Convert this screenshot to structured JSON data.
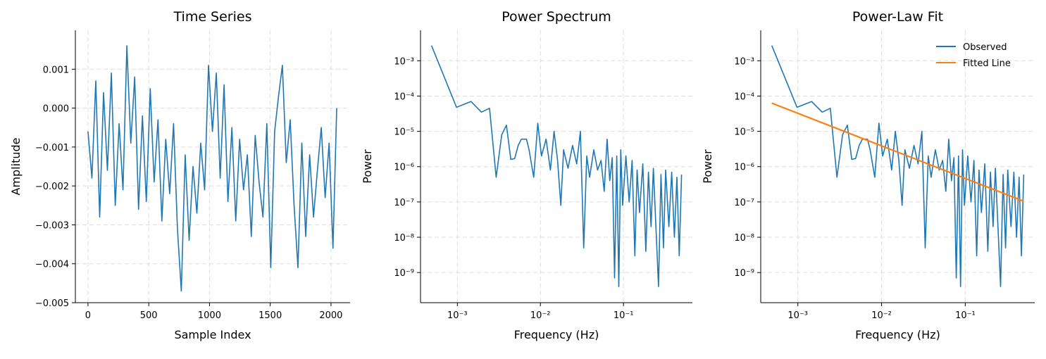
{
  "chart_data": [
    {
      "type": "line",
      "title": "Time Series",
      "xlabel": "Sample Index",
      "ylabel": "Amplitude",
      "x": [
        0,
        32,
        64,
        96,
        128,
        160,
        192,
        224,
        256,
        288,
        320,
        352,
        384,
        416,
        448,
        480,
        512,
        544,
        576,
        608,
        640,
        672,
        704,
        736,
        768,
        800,
        832,
        864,
        896,
        928,
        960,
        992,
        1024,
        1056,
        1088,
        1120,
        1152,
        1184,
        1216,
        1248,
        1280,
        1312,
        1344,
        1376,
        1408,
        1440,
        1472,
        1504,
        1536,
        1568,
        1600,
        1632,
        1664,
        1696,
        1728,
        1760,
        1792,
        1824,
        1856,
        1888,
        1920,
        1952,
        1984,
        2016,
        2047
      ],
      "series": [
        {
          "color": "#1f77b4",
          "values": [
            -0.0006,
            -0.0018,
            0.0007,
            -0.0028,
            0.0004,
            -0.0016,
            0.0009,
            -0.0025,
            -0.0004,
            -0.0021,
            0.0016,
            -0.0009,
            0.0008,
            -0.0026,
            -0.0002,
            -0.0024,
            0.0005,
            -0.0019,
            -0.0003,
            -0.0029,
            -0.0008,
            -0.0022,
            -0.0004,
            -0.0031,
            -0.0047,
            -0.0012,
            -0.0034,
            -0.0015,
            -0.0027,
            -0.0009,
            -0.0021,
            0.0011,
            -0.0006,
            0.0009,
            -0.0018,
            0.0006,
            -0.0024,
            -0.0005,
            -0.0029,
            -0.0008,
            -0.0021,
            -0.0012,
            -0.0033,
            -0.0007,
            -0.0019,
            -0.0028,
            -0.0004,
            -0.0041,
            -0.0006,
            0.0003,
            0.0011,
            -0.0014,
            -0.0003,
            -0.0025,
            -0.0041,
            -0.0009,
            -0.0033,
            -0.0012,
            -0.0028,
            -0.0016,
            -0.0005,
            -0.0023,
            -0.0009,
            -0.0036,
            0.0
          ]
        }
      ],
      "xlim": [
        -104,
        2157
      ],
      "ylim": [
        -0.005,
        0.002
      ],
      "xticks": [
        0,
        500,
        1000,
        1500,
        2000
      ],
      "yticks": [
        {
          "value": -0.005,
          "label": "−0.005"
        },
        {
          "value": -0.004,
          "label": "−0.004"
        },
        {
          "value": -0.003,
          "label": "−0.003"
        },
        {
          "value": -0.002,
          "label": "−0.002"
        },
        {
          "value": -0.001,
          "label": "−0.001"
        },
        {
          "value": 0,
          "label": "0.000"
        },
        0.001
      ],
      "grid": true
    },
    {
      "type": "line",
      "title": "Power Spectrum",
      "xlabel": "Frequency (Hz)",
      "ylabel": "Power",
      "xscale": "log",
      "yscale": "log",
      "x": [
        0.000488,
        0.000977,
        0.00146,
        0.00195,
        0.00244,
        0.00293,
        0.00342,
        0.0039,
        0.0044,
        0.0049,
        0.0054,
        0.0059,
        0.0068,
        0.0073,
        0.0083,
        0.0093,
        0.0103,
        0.0117,
        0.0132,
        0.0146,
        0.0161,
        0.0176,
        0.019,
        0.0215,
        0.0244,
        0.0273,
        0.0303,
        0.0332,
        0.0361,
        0.0391,
        0.0439,
        0.0488,
        0.0537,
        0.0586,
        0.0635,
        0.0684,
        0.0732,
        0.0781,
        0.083,
        0.0879,
        0.0928,
        0.0977,
        0.107,
        0.117,
        0.127,
        0.137,
        0.146,
        0.156,
        0.171,
        0.186,
        0.2,
        0.215,
        0.229,
        0.244,
        0.264,
        0.283,
        0.303,
        0.322,
        0.352,
        0.381,
        0.41,
        0.44,
        0.469,
        0.5
      ],
      "series": [
        {
          "color": "#1f77b4",
          "values": [
            0.0027,
            4.8e-05,
            7e-05,
            3.5e-05,
            4.5e-05,
            5e-07,
            8e-06,
            1.5e-05,
            1.6e-06,
            1.7e-06,
            4e-06,
            6e-06,
            6e-06,
            3e-06,
            5e-07,
            1.7e-05,
            2e-06,
            6e-06,
            8e-07,
            1e-05,
            1.5e-06,
            8e-08,
            3e-06,
            9e-07,
            4e-06,
            1.2e-06,
            1e-05,
            5e-09,
            2e-06,
            5e-07,
            3e-06,
            8e-07,
            1.5e-06,
            2e-07,
            6e-06,
            4e-07,
            1.8e-06,
            7e-10,
            2e-06,
            4e-10,
            3e-06,
            8e-08,
            2e-06,
            1e-07,
            1.5e-06,
            3e-09,
            8e-07,
            5e-08,
            1.2e-06,
            4e-09,
            7e-07,
            2e-08,
            9e-07,
            3e-08,
            4e-10,
            6e-07,
            5e-09,
            8e-07,
            2e-08,
            7e-07,
            1e-08,
            5e-07,
            3e-09,
            6e-07
          ]
        }
      ],
      "xlim": [
        0.00036,
        0.676
      ],
      "ylim": [
        1.4e-10,
        0.0073
      ],
      "xticks": [
        {
          "value": 0.001,
          "label": "10⁻³"
        },
        {
          "value": 0.01,
          "label": "10⁻²"
        },
        {
          "value": 0.1,
          "label": "10⁻¹"
        }
      ],
      "yticks": [
        {
          "value": 1e-09,
          "label": "10⁻⁹"
        },
        {
          "value": 1e-08,
          "label": "10⁻⁸"
        },
        {
          "value": 1e-07,
          "label": "10⁻⁷"
        },
        {
          "value": 1e-06,
          "label": "10⁻⁶"
        },
        {
          "value": 1e-05,
          "label": "10⁻⁵"
        },
        {
          "value": 0.0001,
          "label": "10⁻⁴"
        },
        {
          "value": 0.001,
          "label": "10⁻³"
        }
      ],
      "grid": true
    },
    {
      "type": "line",
      "title": "Power-Law Fit",
      "xlabel": "Frequency (Hz)",
      "ylabel": "Power",
      "xscale": "log",
      "yscale": "log",
      "legend": "upper right",
      "x": [
        0.000488,
        0.000977,
        0.00146,
        0.00195,
        0.00244,
        0.00293,
        0.00342,
        0.0039,
        0.0044,
        0.0049,
        0.0054,
        0.0059,
        0.0068,
        0.0073,
        0.0083,
        0.0093,
        0.0103,
        0.0117,
        0.0132,
        0.0146,
        0.0161,
        0.0176,
        0.019,
        0.0215,
        0.0244,
        0.0273,
        0.0303,
        0.0332,
        0.0361,
        0.0391,
        0.0439,
        0.0488,
        0.0537,
        0.0586,
        0.0635,
        0.0684,
        0.0732,
        0.0781,
        0.083,
        0.0879,
        0.0928,
        0.0977,
        0.107,
        0.117,
        0.127,
        0.137,
        0.146,
        0.156,
        0.171,
        0.186,
        0.2,
        0.215,
        0.229,
        0.244,
        0.264,
        0.283,
        0.303,
        0.322,
        0.352,
        0.381,
        0.41,
        0.44,
        0.469,
        0.5
      ],
      "series": [
        {
          "name": "Observed",
          "color": "#1f77b4",
          "values": [
            0.0027,
            4.8e-05,
            7e-05,
            3.5e-05,
            4.5e-05,
            5e-07,
            8e-06,
            1.5e-05,
            1.6e-06,
            1.7e-06,
            4e-06,
            6e-06,
            6e-06,
            3e-06,
            5e-07,
            1.7e-05,
            2e-06,
            6e-06,
            8e-07,
            1e-05,
            1.5e-06,
            8e-08,
            3e-06,
            9e-07,
            4e-06,
            1.2e-06,
            1e-05,
            5e-09,
            2e-06,
            5e-07,
            3e-06,
            8e-07,
            1.5e-06,
            2e-07,
            6e-06,
            4e-07,
            1.8e-06,
            7e-10,
            2e-06,
            4e-10,
            3e-06,
            8e-08,
            2e-06,
            1e-07,
            1.5e-06,
            3e-09,
            8e-07,
            5e-08,
            1.2e-06,
            4e-09,
            7e-07,
            2e-08,
            9e-07,
            3e-08,
            4e-10,
            6e-07,
            5e-09,
            8e-07,
            2e-08,
            7e-07,
            1e-08,
            5e-07,
            3e-09,
            6e-07
          ]
        },
        {
          "name": "Fitted Line",
          "color": "#ff7f0e",
          "x": [
            0.000488,
            0.5
          ],
          "values": [
            6.3e-05,
            1.05e-07
          ]
        }
      ],
      "xlim": [
        0.00036,
        0.676
      ],
      "ylim": [
        1.4e-10,
        0.0073
      ],
      "xticks": [
        {
          "value": 0.001,
          "label": "10⁻³"
        },
        {
          "value": 0.01,
          "label": "10⁻²"
        },
        {
          "value": 0.1,
          "label": "10⁻¹"
        }
      ],
      "yticks": [
        {
          "value": 1e-09,
          "label": "10⁻⁹"
        },
        {
          "value": 1e-08,
          "label": "10⁻⁸"
        },
        {
          "value": 1e-07,
          "label": "10⁻⁷"
        },
        {
          "value": 1e-06,
          "label": "10⁻⁶"
        },
        {
          "value": 1e-05,
          "label": "10⁻⁵"
        },
        {
          "value": 0.0001,
          "label": "10⁻⁴"
        },
        {
          "value": 0.001,
          "label": "10⁻³"
        }
      ],
      "grid": true
    }
  ]
}
